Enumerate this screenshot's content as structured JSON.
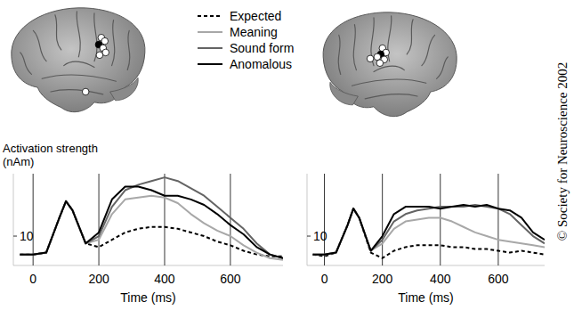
{
  "credit": "© Society for Neuroscience 2002",
  "chart_data": [
    {
      "type": "line",
      "legend": "top",
      "grid": true,
      "y_label": "Activation strength (nAm)",
      "x_label": "Time (ms)",
      "xlim": [
        -60,
        760
      ],
      "xticks": [
        0,
        200,
        400,
        600
      ],
      "ylim": [
        -6,
        44
      ],
      "yticks": [
        10
      ],
      "x": [
        -40,
        0,
        40,
        80,
        100,
        120,
        160,
        200,
        240,
        280,
        320,
        360,
        400,
        440,
        480,
        520,
        560,
        600,
        640,
        680,
        720,
        760
      ],
      "series": [
        {
          "name": "Expected",
          "color": "#000000",
          "line_style": "dashed",
          "values": [
            0,
            0,
            1,
            20,
            29,
            24,
            6,
            4,
            8,
            12,
            14,
            15,
            15,
            14,
            12,
            10,
            7,
            5,
            2,
            0,
            -1,
            -1
          ]
        },
        {
          "name": "Meaning",
          "color": "#a8a8a8",
          "line_style": "solid",
          "values": [
            0,
            0,
            1,
            20,
            29,
            24,
            6,
            8,
            22,
            30,
            31,
            32,
            31,
            28,
            22,
            17,
            13,
            10,
            5,
            1,
            -2,
            -3
          ]
        },
        {
          "name": "Sound form",
          "color": "#646464",
          "line_style": "solid",
          "values": [
            0,
            0,
            1,
            20,
            29,
            24,
            6,
            10,
            26,
            35,
            38,
            40,
            42,
            40,
            36,
            32,
            26,
            20,
            14,
            6,
            0,
            -2
          ]
        },
        {
          "name": "Anomalous",
          "color": "#000000",
          "line_style": "solid",
          "values": [
            0,
            0,
            1,
            20,
            29,
            24,
            6,
            12,
            30,
            37,
            37,
            35,
            32,
            32,
            30,
            27,
            22,
            16,
            11,
            4,
            0,
            -2
          ]
        }
      ]
    },
    {
      "type": "line",
      "grid": true,
      "x_label": "Time (ms)",
      "xlim": [
        -60,
        760
      ],
      "xticks": [
        0,
        200,
        400,
        600
      ],
      "ylim": [
        -6,
        44
      ],
      "yticks": [
        10
      ],
      "x": [
        -40,
        0,
        40,
        80,
        100,
        120,
        160,
        200,
        240,
        280,
        320,
        360,
        400,
        440,
        480,
        520,
        560,
        600,
        640,
        680,
        720,
        760
      ],
      "series": [
        {
          "name": "Expected",
          "color": "#000000",
          "line_style": "dashed",
          "values": [
            0,
            -1,
            1,
            16,
            25,
            20,
            1,
            -2,
            2,
            4,
            5,
            5,
            5,
            4,
            4,
            3,
            3,
            2,
            1,
            2,
            1,
            0
          ]
        },
        {
          "name": "Meaning",
          "color": "#a8a8a8",
          "line_style": "solid",
          "values": [
            0,
            0,
            1,
            16,
            25,
            20,
            2,
            6,
            14,
            18,
            19,
            20,
            20,
            18,
            15,
            12,
            10,
            8,
            7,
            6,
            5,
            4
          ]
        },
        {
          "name": "Sound form",
          "color": "#646464",
          "line_style": "solid",
          "values": [
            0,
            0,
            1,
            16,
            25,
            20,
            2,
            8,
            18,
            22,
            24,
            25,
            26,
            26,
            26,
            27,
            26,
            25,
            22,
            16,
            10,
            6
          ]
        },
        {
          "name": "Anomalous",
          "color": "#000000",
          "line_style": "solid",
          "values": [
            0,
            0,
            1,
            16,
            25,
            20,
            2,
            10,
            22,
            26,
            26,
            26,
            25,
            26,
            27,
            26,
            27,
            25,
            24,
            20,
            12,
            8
          ]
        }
      ]
    }
  ]
}
